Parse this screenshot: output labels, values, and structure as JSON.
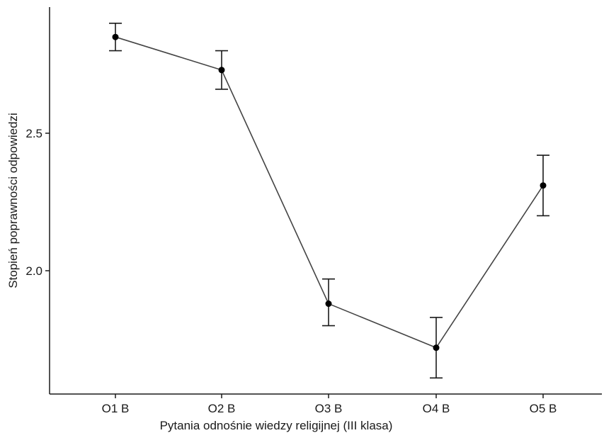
{
  "chart_data": {
    "type": "line",
    "title": "",
    "xlabel": "Pytania odnośnie wiedzy religijnej (III klasa)",
    "ylabel": "Stopień poprawności odpowiedzi",
    "categories": [
      "O1 B",
      "O2 B",
      "O3 B",
      "O4 B",
      "O5 B"
    ],
    "series": [
      {
        "values": [
          2.85,
          2.73,
          1.88,
          1.72,
          2.31
        ],
        "error_low": [
          2.8,
          2.66,
          1.8,
          1.61,
          2.2
        ],
        "error_high": [
          2.9,
          2.8,
          1.97,
          1.83,
          2.42
        ]
      }
    ],
    "yticks": [
      2.0,
      2.5
    ],
    "ytick_labels": [
      "2.0",
      "2.5"
    ],
    "ylim": [
      1.58,
      2.95
    ],
    "grid": false,
    "legend": "none",
    "colors": {
      "line": "#444444",
      "points": "#000000",
      "errorbars": "#1a1a1a",
      "axis": "#1a1a1a"
    }
  }
}
